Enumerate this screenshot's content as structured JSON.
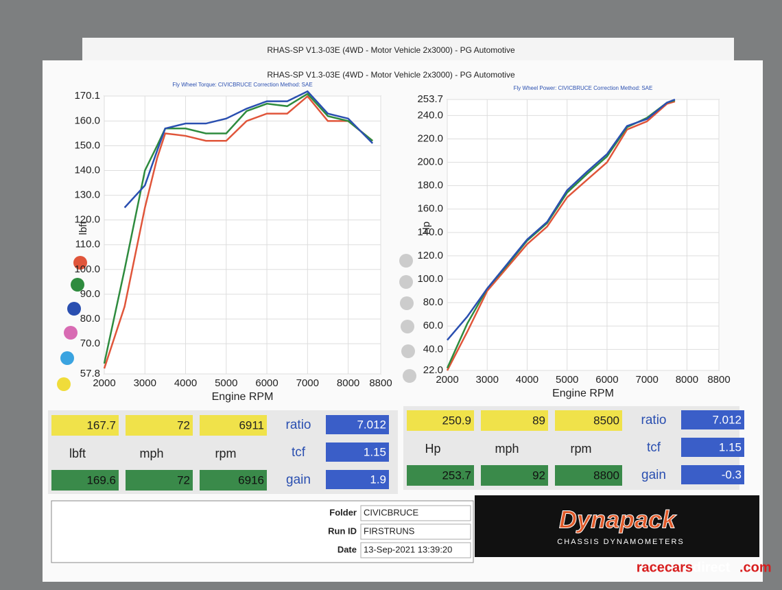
{
  "header": {
    "back_title": "RHAS-SP V1.3-03E  (4WD - Motor Vehicle 2x3000) - PG Automotive",
    "title": "RHAS-SP V1.3-03E  (4WD - Motor Vehicle 2x3000) - PG Automotive"
  },
  "chart_data": [
    {
      "type": "line",
      "subtitle": "Fly Wheel Torque: CIVICBRUCE     Correction Method: SAE",
      "ylabel": "lbft",
      "xlabel": "Engine RPM",
      "x": [
        2000,
        2500,
        3000,
        3300,
        3500,
        4000,
        4500,
        5000,
        5500,
        6000,
        6500,
        7000,
        7500,
        8000,
        8600
      ],
      "series": [
        {
          "color": "#e0553a",
          "values": [
            60,
            85,
            125,
            145,
            155,
            154,
            152,
            152,
            160,
            163,
            163,
            170,
            160,
            160,
            152
          ]
        },
        {
          "color": "#2e8b3e",
          "values": [
            62,
            100,
            140,
            150,
            157,
            157,
            155,
            155,
            164,
            167,
            166,
            171,
            162,
            160,
            152
          ]
        },
        {
          "color": "#2a4fb0",
          "values": [
            null,
            125,
            134,
            148,
            157,
            159,
            159,
            161,
            165,
            168,
            168,
            172,
            163,
            161,
            151
          ]
        }
      ],
      "xlim": [
        2000,
        8800
      ],
      "xticks": [
        2000,
        3000,
        4000,
        5000,
        6000,
        7000,
        8000,
        8800
      ],
      "ylim": [
        57.8,
        170.1
      ],
      "yticks": [
        57.8,
        {
          "value": 70,
          "label": "70.0"
        },
        {
          "value": 80,
          "label": "80.0"
        },
        {
          "value": 90,
          "label": "90.0"
        },
        {
          "value": 100,
          "label": "100.0"
        },
        {
          "value": 110,
          "label": "110.0"
        },
        {
          "value": 120,
          "label": "120.0"
        },
        {
          "value": 130,
          "label": "130.0"
        },
        {
          "value": 140,
          "label": "140.0"
        },
        {
          "value": 150,
          "label": "150.0"
        },
        {
          "value": 160,
          "label": "160.0"
        },
        170.1
      ],
      "grid": true
    },
    {
      "type": "line",
      "subtitle": "Fly Wheel Power: CIVICBRUCE     Correction Method: SAE",
      "ylabel": "Hp",
      "xlabel": "Engine RPM",
      "x": [
        2000,
        2500,
        3000,
        3500,
        4000,
        4500,
        5000,
        5500,
        6000,
        6500,
        7000,
        7500,
        7700
      ],
      "series": [
        {
          "color": "#e0553a",
          "values": [
            22,
            55,
            90,
            110,
            130,
            145,
            170,
            185,
            200,
            228,
            235,
            250,
            252
          ]
        },
        {
          "color": "#2e8b3e",
          "values": [
            24,
            62,
            92,
            112,
            133,
            148,
            174,
            190,
            205,
            230,
            238,
            251,
            253
          ]
        },
        {
          "color": "#2a4fb0",
          "values": [
            48,
            68,
            92,
            113,
            134,
            149,
            176,
            192,
            207,
            231,
            237,
            251,
            253.7
          ]
        }
      ],
      "xlim": [
        2000,
        8800
      ],
      "xticks": [
        2000,
        3000,
        4000,
        5000,
        6000,
        7000,
        8000,
        8800
      ],
      "ylim": [
        22,
        253.7
      ],
      "yticks": [
        {
          "value": 22,
          "label": "22.0"
        },
        {
          "value": 40,
          "label": "40.0"
        },
        {
          "value": 60,
          "label": "60.0"
        },
        {
          "value": 80,
          "label": "80.0"
        },
        {
          "value": 100,
          "label": "100.0"
        },
        {
          "value": 120,
          "label": "120.0"
        },
        {
          "value": 140,
          "label": "140.0"
        },
        {
          "value": 160,
          "label": "160.0"
        },
        {
          "value": 180,
          "label": "180.0"
        },
        {
          "value": 200,
          "label": "200.0"
        },
        {
          "value": 220,
          "label": "220.0"
        },
        {
          "value": 240,
          "label": "240.0"
        },
        {
          "value": 253.7,
          "label": "253.7"
        }
      ],
      "grid": true
    }
  ],
  "readouts": [
    {
      "top": [
        "167.7",
        "72",
        "6911"
      ],
      "units": [
        "lbft",
        "mph",
        "rpm"
      ],
      "bottom": [
        "169.6",
        "72",
        "6916"
      ],
      "factor_labels": [
        "ratio",
        "tcf",
        "gain"
      ],
      "factors": [
        "7.012",
        "1.15",
        "1.9"
      ]
    },
    {
      "top": [
        "250.9",
        "89",
        "8500"
      ],
      "units": [
        "Hp",
        "mph",
        "rpm"
      ],
      "bottom": [
        "253.7",
        "92",
        "8800"
      ],
      "factor_labels": [
        "ratio",
        "tcf",
        "gain"
      ],
      "factors": [
        "7.012",
        "1.15",
        "-0.3"
      ]
    }
  ],
  "footer": {
    "labels": [
      "Folder",
      "Run ID",
      "Date"
    ],
    "values": [
      "CIVICBRUCE",
      "FIRSTRUNS",
      "13-Sep-2021  13:39:20"
    ],
    "logo": "Dynapack",
    "logo_sub": "CHASSIS DYNAMOMETERS"
  },
  "watermark": {
    "a": "racecars",
    "b": "direct",
    "c": ".com"
  }
}
